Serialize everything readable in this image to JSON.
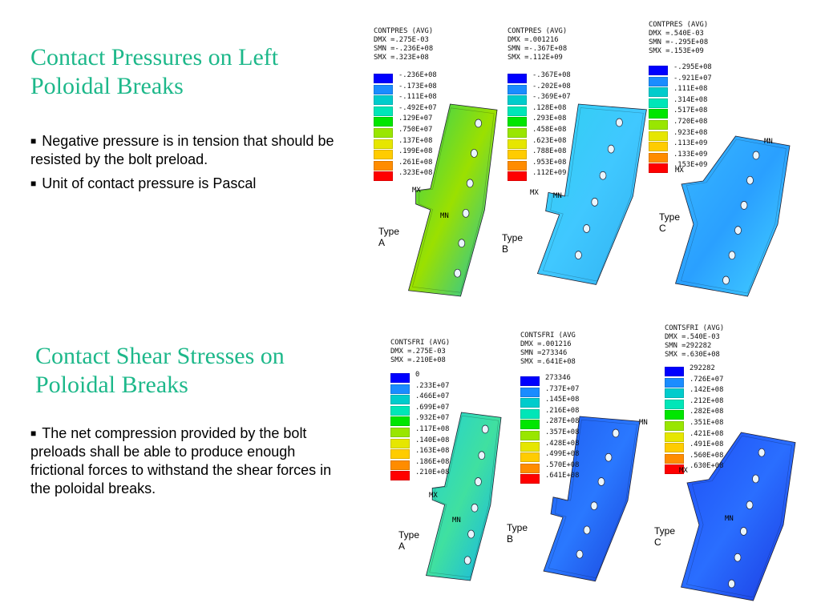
{
  "sections": [
    {
      "title_lines": [
        "Contact Pressures on Left",
        "Poloidal Breaks"
      ],
      "bullets": [
        "Negative pressure is in tension that should be resisted by the bolt preload.",
        "Unit of contact pressure is Pascal"
      ],
      "panels": [
        {
          "type_label": "Type A",
          "header": [
            "CONTPRES (AVG)",
            "DMX =.275E-03",
            "SMN =-.236E+08",
            "SMX =.323E+08"
          ],
          "legend": [
            "-.236E+08",
            "-.173E+08",
            "-.111E+08",
            "-.492E+07",
            ".129E+07",
            ".750E+07",
            ".137E+08",
            ".199E+08",
            ".261E+08",
            ".323E+08"
          ],
          "markers": [
            "MX",
            "MN"
          ]
        },
        {
          "type_label": "Type B",
          "header": [
            "CONTPRES (AVG)",
            "DMX =.001216",
            "SMN =-.367E+08",
            "SMX =.112E+09"
          ],
          "legend": [
            "-.367E+08",
            "-.202E+08",
            "-.369E+07",
            ".128E+08",
            ".293E+08",
            ".458E+08",
            ".623E+08",
            ".788E+08",
            ".953E+08",
            ".112E+09"
          ],
          "markers": [
            "MX",
            "MN"
          ]
        },
        {
          "type_label": "Type C",
          "header": [
            "CONTPRES (AVG)",
            "DMX =.540E-03",
            "SMN =-.295E+08",
            "SMX =.153E+09"
          ],
          "legend": [
            "-.295E+08",
            "-.921E+07",
            ".111E+08",
            ".314E+08",
            ".517E+08",
            ".720E+08",
            ".923E+08",
            ".113E+09",
            ".133E+09",
            ".153E+09"
          ],
          "markers": [
            "MX",
            "MN"
          ]
        }
      ]
    },
    {
      "title_lines": [
        "Contact Shear Stresses on",
        "Poloidal Breaks"
      ],
      "bullets": [
        "The net compression provided by the bolt preloads shall be able to produce enough frictional forces to withstand the shear forces in the poloidal breaks."
      ],
      "panels": [
        {
          "type_label": "Type A",
          "header": [
            "CONTSFRI (AVG)",
            "DMX =.275E-03",
            "SMX =.210E+08"
          ],
          "legend": [
            "0",
            ".233E+07",
            ".466E+07",
            ".699E+07",
            ".932E+07",
            ".117E+08",
            ".140E+08",
            ".163E+08",
            ".186E+08",
            ".210E+08"
          ],
          "markers": [
            "MX",
            "MN"
          ]
        },
        {
          "type_label": "Type B",
          "header": [
            "CONTSFRI (AVG",
            "DMX =.001216",
            "SMN =273346",
            "SMX =.641E+08"
          ],
          "legend": [
            "273346",
            ".737E+07",
            ".145E+08",
            ".216E+08",
            ".287E+08",
            ".357E+08",
            ".428E+08",
            ".499E+08",
            ".570E+08",
            ".641E+08"
          ],
          "markers": [
            "MN"
          ]
        },
        {
          "type_label": "Type C",
          "header": [
            "CONTSFRI (AVG)",
            "DMX =.540E-03",
            "SMN =292282",
            "SMX =.630E+08"
          ],
          "legend": [
            "292282",
            ".726E+07",
            ".142E+08",
            ".212E+08",
            ".282E+08",
            ".351E+08",
            ".421E+08",
            ".491E+08",
            ".560E+08",
            ".630E+08"
          ],
          "markers": [
            "MX",
            "MN"
          ]
        }
      ]
    }
  ],
  "legend_colors": [
    "#0000ff",
    "#1a8cff",
    "#00cccc",
    "#00e6b8",
    "#00e600",
    "#99e600",
    "#e6e600",
    "#ffcc00",
    "#ff8c00",
    "#ff0000"
  ]
}
